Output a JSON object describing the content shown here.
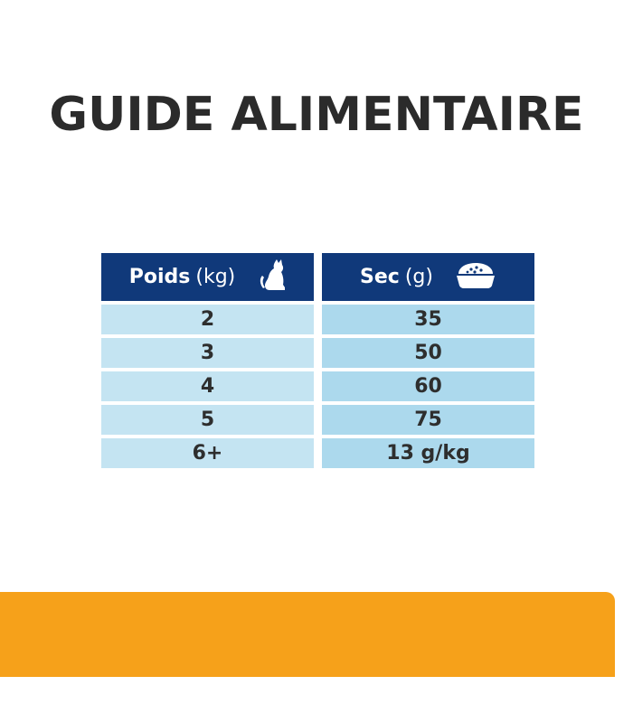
{
  "title": "GUIDE ALIMENTAIRE",
  "table": {
    "headers": [
      {
        "label": "Poids",
        "unit": "(kg)",
        "icon": "cat-icon"
      },
      {
        "label": "Sec",
        "unit": "(g)",
        "icon": "food-bowl-icon"
      }
    ],
    "rows": [
      {
        "weight": "2",
        "dry": "35"
      },
      {
        "weight": "3",
        "dry": "50"
      },
      {
        "weight": "4",
        "dry": "60"
      },
      {
        "weight": "5",
        "dry": "75"
      },
      {
        "weight": "6+",
        "dry": "13 g/kg"
      }
    ]
  },
  "colors": {
    "header": "#10397a",
    "accent": "#f6a11a",
    "cell_left": "#c4e4f2",
    "cell_right": "#acd9ed"
  }
}
